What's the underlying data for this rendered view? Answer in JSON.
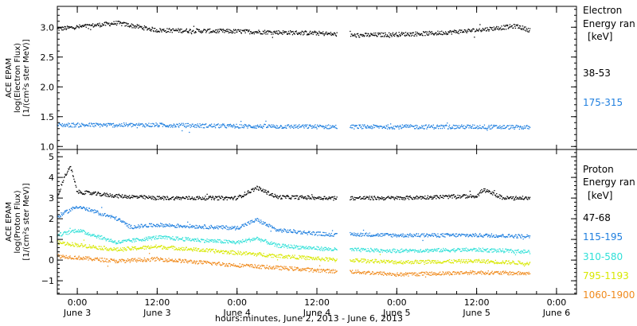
{
  "chart_data": {
    "x_axis": {
      "label": "hours:minutes, June  2, 2013 - June  6, 2013",
      "start": "2013-06-02T21:00",
      "end": "2013-06-06T03:00",
      "ticks": [
        {
          "time": "2013-06-03T00:00",
          "time_label": "0:00",
          "date_label": "June 3"
        },
        {
          "time": "2013-06-03T12:00",
          "time_label": "12:00",
          "date_label": "June 3"
        },
        {
          "time": "2013-06-04T00:00",
          "time_label": "0:00",
          "date_label": "June 4"
        },
        {
          "time": "2013-06-04T12:00",
          "time_label": "12:00",
          "date_label": "June 4"
        },
        {
          "time": "2013-06-05T00:00",
          "time_label": "0:00",
          "date_label": "June 5"
        },
        {
          "time": "2013-06-05T12:00",
          "time_label": "12:00",
          "date_label": "June 5"
        },
        {
          "time": "2013-06-06T00:00",
          "time_label": "0:00",
          "date_label": "June 6"
        }
      ],
      "data_gap": [
        "2013-06-04T15:00",
        "2013-06-04T17:00"
      ]
    },
    "panels": [
      {
        "id": "electron",
        "type": "scatter",
        "ylabel": [
          "ACE EPAM",
          "log(Electron Flux)",
          "[1/(cm²s ster MeV)]"
        ],
        "ylim": [
          0.95,
          3.35
        ],
        "yticks": [
          1.0,
          1.5,
          2.0,
          2.5,
          3.0
        ],
        "ytick_labels": [
          "1.0",
          "1.5",
          "2.0",
          "2.5",
          "3.0"
        ],
        "legend_title": [
          "Electron",
          "Energy ran",
          "[keV]"
        ],
        "series": [
          {
            "name": "38-53",
            "color": "#000000",
            "times": [
              "2013-06-02T21:00",
              "2013-06-03T06:00",
              "2013-06-03T12:00",
              "2013-06-04T00:00",
              "2013-06-04T12:00",
              "2013-06-04T15:00",
              "2013-06-04T17:00",
              "2013-06-05T00:00",
              "2013-06-05T06:00",
              "2013-06-05T12:00",
              "2013-06-05T18:00",
              "2013-06-05T20:00"
            ],
            "values": [
              2.97,
              3.07,
              2.95,
              2.93,
              2.9,
              2.88,
              2.86,
              2.88,
              2.9,
              2.95,
              3.02,
              2.95
            ]
          },
          {
            "name": "175-315",
            "color": "#1f7fdf",
            "times": [
              "2013-06-02T21:00",
              "2013-06-03T12:00",
              "2013-06-04T00:00",
              "2013-06-04T15:00",
              "2013-06-04T17:00",
              "2013-06-05T12:00",
              "2013-06-05T20:00"
            ],
            "values": [
              1.36,
              1.36,
              1.34,
              1.33,
              1.33,
              1.33,
              1.32
            ]
          }
        ]
      },
      {
        "id": "proton",
        "type": "scatter",
        "ylabel": [
          "ACE EPAM",
          "log(Proton Flux)",
          "[1/(cm²s ster MeV)]"
        ],
        "ylim": [
          -1.65,
          5.35
        ],
        "yticks": [
          -1,
          0,
          1,
          2,
          3,
          4,
          5
        ],
        "ytick_labels": [
          "−1",
          "0",
          "1",
          "2",
          "3",
          "4",
          "5"
        ],
        "legend_title": [
          "Proton",
          "Energy ran",
          "[keV]"
        ],
        "series": [
          {
            "name": "47-68",
            "color": "#000000",
            "times": [
              "2013-06-02T21:00",
              "2013-06-02T22:00",
              "2013-06-02T23:00",
              "2013-06-03T00:00",
              "2013-06-03T06:00",
              "2013-06-03T12:00",
              "2013-06-04T00:00",
              "2013-06-04T03:00",
              "2013-06-04T06:00",
              "2013-06-04T15:00",
              "2013-06-04T17:00",
              "2013-06-05T00:00",
              "2013-06-05T12:00",
              "2013-06-05T13:00",
              "2013-06-05T16:00",
              "2013-06-05T20:00"
            ],
            "values": [
              3.0,
              4.0,
              4.5,
              3.3,
              3.1,
              3.0,
              3.0,
              3.5,
              3.05,
              3.0,
              3.0,
              3.0,
              3.1,
              3.4,
              3.0,
              3.0
            ]
          },
          {
            "name": "115-195",
            "color": "#1f7fdf",
            "times": [
              "2013-06-02T21:00",
              "2013-06-03T00:00",
              "2013-06-03T06:00",
              "2013-06-03T08:00",
              "2013-06-03T12:00",
              "2013-06-04T00:00",
              "2013-06-04T03:00",
              "2013-06-04T06:00",
              "2013-06-04T15:00",
              "2013-06-04T17:00",
              "2013-06-05T00:00",
              "2013-06-05T12:00",
              "2013-06-05T20:00"
            ],
            "values": [
              2.1,
              2.6,
              2.0,
              1.6,
              1.7,
              1.55,
              1.95,
              1.45,
              1.2,
              1.25,
              1.2,
              1.2,
              1.15
            ]
          },
          {
            "name": "310-580",
            "color": "#2fe0d8",
            "times": [
              "2013-06-02T21:00",
              "2013-06-03T00:00",
              "2013-06-03T06:00",
              "2013-06-03T12:00",
              "2013-06-04T00:00",
              "2013-06-04T03:00",
              "2013-06-04T06:00",
              "2013-06-04T15:00",
              "2013-06-04T17:00",
              "2013-06-05T00:00",
              "2013-06-05T12:00",
              "2013-06-05T20:00"
            ],
            "values": [
              1.2,
              1.45,
              0.85,
              1.1,
              0.85,
              1.05,
              0.7,
              0.5,
              0.5,
              0.45,
              0.5,
              0.4
            ]
          },
          {
            "name": "795-1193",
            "color": "#d8e800",
            "times": [
              "2013-06-02T21:00",
              "2013-06-03T06:00",
              "2013-06-03T12:00",
              "2013-06-04T00:00",
              "2013-06-04T15:00",
              "2013-06-04T17:00",
              "2013-06-05T00:00",
              "2013-06-05T12:00",
              "2013-06-05T20:00"
            ],
            "values": [
              0.85,
              0.5,
              0.65,
              0.35,
              0.0,
              0.0,
              -0.1,
              -0.05,
              -0.15
            ]
          },
          {
            "name": "1060-1900",
            "color": "#f08a1c",
            "times": [
              "2013-06-02T21:00",
              "2013-06-03T06:00",
              "2013-06-03T12:00",
              "2013-06-04T00:00",
              "2013-06-04T15:00",
              "2013-06-04T17:00",
              "2013-06-05T00:00",
              "2013-06-05T12:00",
              "2013-06-05T20:00"
            ],
            "values": [
              0.2,
              -0.05,
              0.05,
              -0.25,
              -0.55,
              -0.55,
              -0.7,
              -0.6,
              -0.65
            ]
          }
        ]
      }
    ]
  }
}
